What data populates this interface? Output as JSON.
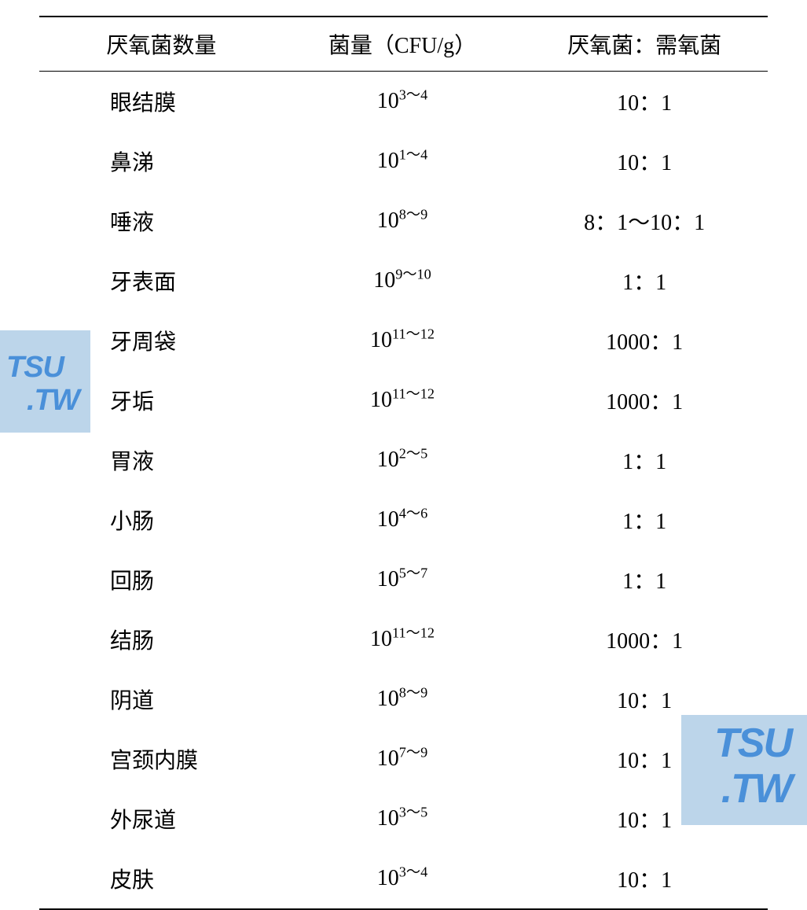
{
  "table": {
    "headers": [
      "厌氧菌数量",
      "菌量（CFU/g）",
      "厌氧菌：需氧菌"
    ],
    "rows": [
      {
        "site": "眼结膜",
        "base": "10",
        "exp": "3～4",
        "ratio": "10：1"
      },
      {
        "site": "鼻涕",
        "base": "10",
        "exp": "1～4",
        "ratio": "10：1"
      },
      {
        "site": "唾液",
        "base": "10",
        "exp": "8～9",
        "ratio": "8：1～10：1"
      },
      {
        "site": "牙表面",
        "base": "10",
        "exp": "9～10",
        "ratio": "1：1"
      },
      {
        "site": "牙周袋",
        "base": "10",
        "exp": "11～12",
        "ratio": "1000：1"
      },
      {
        "site": "牙垢",
        "base": "10",
        "exp": "11～12",
        "ratio": "1000：1"
      },
      {
        "site": "胃液",
        "base": "10",
        "exp": "2～5",
        "ratio": "1：1"
      },
      {
        "site": "小肠",
        "base": "10",
        "exp": "4～6",
        "ratio": "1：1"
      },
      {
        "site": "回肠",
        "base": "10",
        "exp": "5～7",
        "ratio": "1：1"
      },
      {
        "site": "结肠",
        "base": "10",
        "exp": "11～12",
        "ratio": "1000：1"
      },
      {
        "site": "阴道",
        "base": "10",
        "exp": "8～9",
        "ratio": "10：1"
      },
      {
        "site": "宫颈内膜",
        "base": "10",
        "exp": "7～9",
        "ratio": "10：1"
      },
      {
        "site": "外尿道",
        "base": "10",
        "exp": "3～5",
        "ratio": "10：1"
      },
      {
        "site": "皮肤",
        "base": "10",
        "exp": "3～4",
        "ratio": "10：1"
      }
    ],
    "styling": {
      "font_family": "SimSun",
      "font_size_pt": 28,
      "text_color": "#000000",
      "background_color": "#ffffff",
      "border_color": "#000000",
      "header_border_top_width": 2,
      "header_border_bottom_width": 1.5,
      "table_border_bottom_width": 2,
      "row_padding_vertical": 18,
      "col1_align": "left",
      "col2_align": "center",
      "col3_align": "center",
      "col1_padding_left": 90
    }
  },
  "watermarks": [
    {
      "text_line1": "TSU",
      "text_line2": ".TW",
      "position": "left-middle",
      "bg_color": "#bcd5ea",
      "text_color": "#4a90d9",
      "font_size": 38,
      "font_weight": "bold",
      "font_style": "italic"
    },
    {
      "text_line1": "TSU",
      "text_line2": ".TW",
      "position": "bottom-right",
      "bg_color": "#bcd5ea",
      "text_color": "#4a90d9",
      "font_size": 52,
      "font_weight": "bold",
      "font_style": "italic"
    }
  ]
}
